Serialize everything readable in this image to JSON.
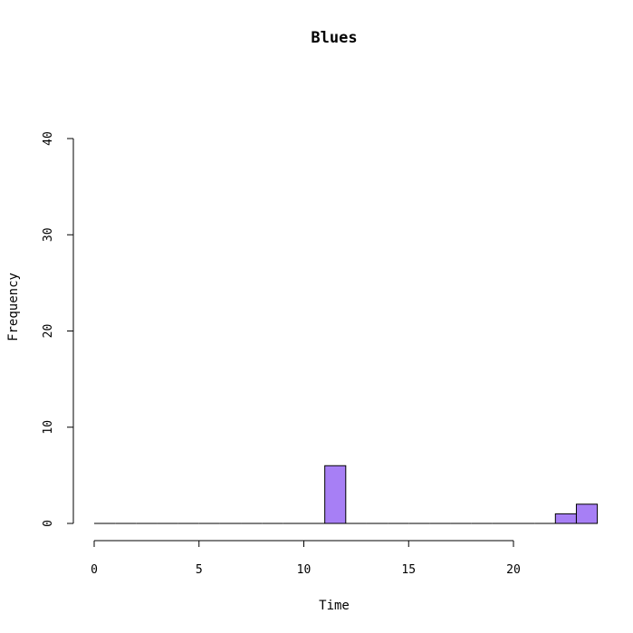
{
  "chart_data": {
    "type": "bar",
    "title": "Blues",
    "xlabel": "Time",
    "ylabel": "Frequency",
    "xlim": [
      0,
      24
    ],
    "ylim": [
      0,
      40
    ],
    "x_ticks": [
      0,
      5,
      10,
      15,
      20
    ],
    "y_ticks": [
      0,
      10,
      20,
      30,
      40
    ],
    "bin_width": 1,
    "bins": [
      {
        "start": 0,
        "end": 1,
        "count": 0
      },
      {
        "start": 1,
        "end": 2,
        "count": 0
      },
      {
        "start": 2,
        "end": 3,
        "count": 0
      },
      {
        "start": 3,
        "end": 4,
        "count": 0
      },
      {
        "start": 4,
        "end": 5,
        "count": 0
      },
      {
        "start": 5,
        "end": 6,
        "count": 0
      },
      {
        "start": 6,
        "end": 7,
        "count": 0
      },
      {
        "start": 7,
        "end": 8,
        "count": 0
      },
      {
        "start": 8,
        "end": 9,
        "count": 0
      },
      {
        "start": 9,
        "end": 10,
        "count": 0
      },
      {
        "start": 10,
        "end": 11,
        "count": 0
      },
      {
        "start": 11,
        "end": 12,
        "count": 6
      },
      {
        "start": 12,
        "end": 13,
        "count": 0
      },
      {
        "start": 13,
        "end": 14,
        "count": 0
      },
      {
        "start": 14,
        "end": 15,
        "count": 0
      },
      {
        "start": 15,
        "end": 16,
        "count": 0
      },
      {
        "start": 16,
        "end": 17,
        "count": 0
      },
      {
        "start": 17,
        "end": 18,
        "count": 0
      },
      {
        "start": 18,
        "end": 19,
        "count": 0
      },
      {
        "start": 19,
        "end": 20,
        "count": 0
      },
      {
        "start": 20,
        "end": 21,
        "count": 0
      },
      {
        "start": 21,
        "end": 22,
        "count": 0
      },
      {
        "start": 22,
        "end": 23,
        "count": 1
      },
      {
        "start": 23,
        "end": 24,
        "count": 2
      }
    ],
    "bar_color": "#a77ff5",
    "grid": false
  }
}
